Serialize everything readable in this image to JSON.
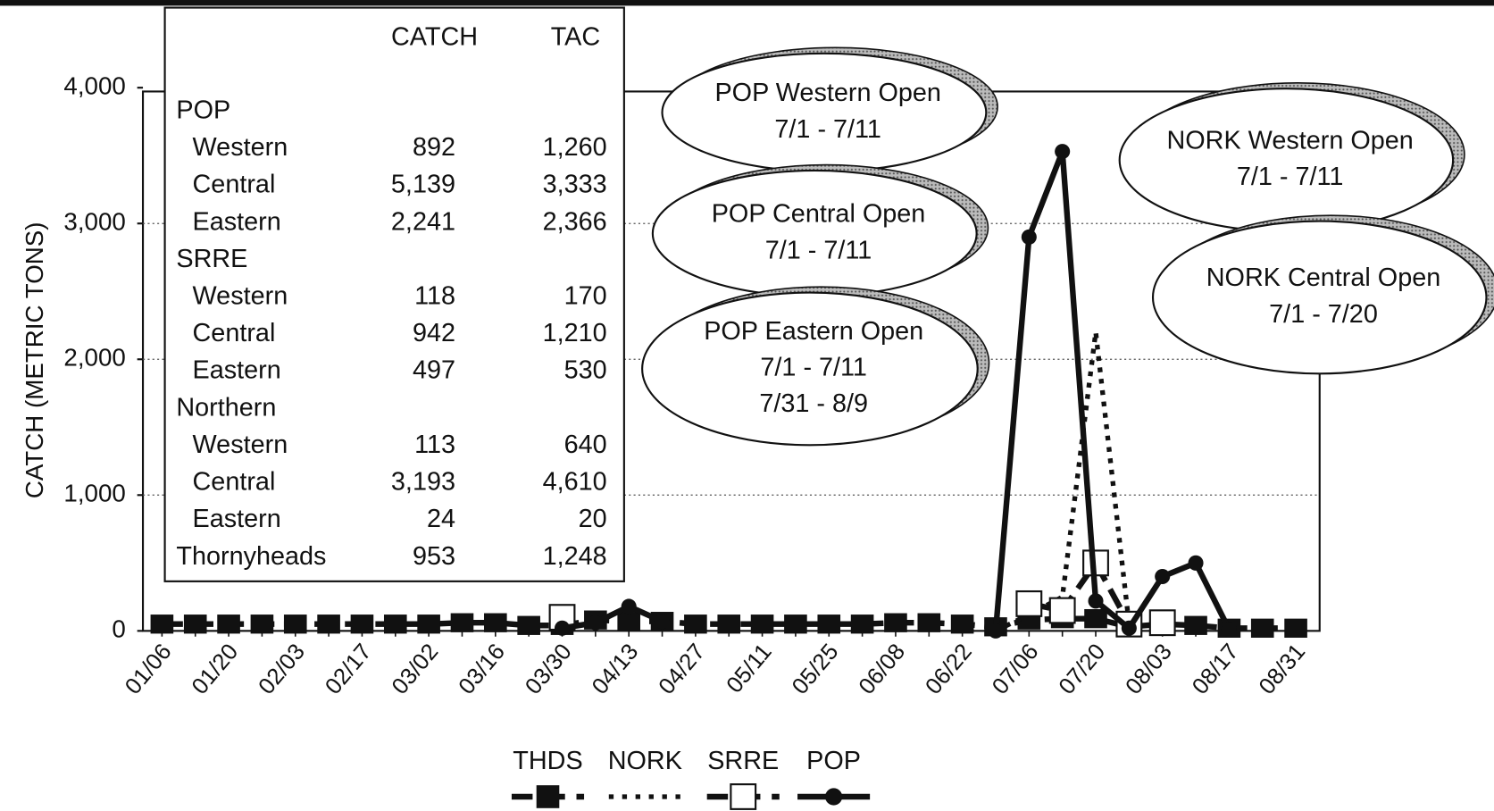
{
  "chart_data": {
    "type": "line",
    "y_label": "CATCH (METRIC TONS)",
    "categories": [
      "01/06",
      null,
      "01/20",
      null,
      "02/03",
      null,
      "02/17",
      null,
      "03/02",
      null,
      "03/16",
      null,
      "03/30",
      null,
      "04/13",
      null,
      "04/27",
      null,
      "05/11",
      null,
      "05/25",
      null,
      "06/08",
      null,
      "06/22",
      null,
      "07/06",
      null,
      "07/20",
      null,
      "08/03",
      null,
      "08/17",
      null,
      "08/31"
    ],
    "ylim": [
      0,
      4000
    ],
    "yticks": [
      0,
      {
        "value": 1000,
        "label": "1,000"
      },
      {
        "value": 2000,
        "label": "2,000"
      },
      {
        "value": 3000,
        "label": "3,000"
      },
      {
        "value": 4000,
        "label": "4,000"
      }
    ],
    "grid": true,
    "series": [
      {
        "name": "THDS",
        "color": "#111111",
        "line_style": "dashed",
        "marker": "square",
        "values": [
          50,
          50,
          50,
          50,
          50,
          50,
          50,
          50,
          50,
          60,
          60,
          40,
          40,
          80,
          70,
          70,
          50,
          50,
          50,
          50,
          50,
          50,
          60,
          60,
          50,
          30,
          80,
          90,
          90,
          30,
          50,
          40,
          20,
          20,
          20
        ]
      },
      {
        "name": "NORK",
        "color": "#111111",
        "line_style": "dotted",
        "marker": "none",
        "values": [
          null,
          null,
          null,
          null,
          null,
          null,
          null,
          null,
          null,
          null,
          null,
          null,
          null,
          null,
          null,
          null,
          null,
          null,
          null,
          null,
          null,
          null,
          null,
          null,
          null,
          0,
          120,
          250,
          2200,
          50,
          null,
          null,
          null,
          null,
          null
        ]
      },
      {
        "name": "SRRE",
        "color": "#111111",
        "line_style": "dashed",
        "marker": "open-square",
        "values": [
          null,
          null,
          null,
          null,
          null,
          null,
          null,
          null,
          null,
          null,
          null,
          null,
          100,
          null,
          null,
          null,
          null,
          null,
          null,
          null,
          null,
          null,
          null,
          null,
          null,
          null,
          200,
          150,
          500,
          50,
          60,
          null,
          null,
          null,
          null
        ]
      },
      {
        "name": "POP",
        "color": "#111111",
        "line_style": "solid",
        "marker": "circle",
        "values": [
          null,
          null,
          null,
          null,
          null,
          null,
          null,
          null,
          null,
          null,
          null,
          null,
          20,
          60,
          180,
          70,
          null,
          null,
          null,
          null,
          null,
          null,
          null,
          null,
          null,
          0,
          2900,
          3530,
          220,
          20,
          400,
          500,
          10,
          null,
          null
        ]
      }
    ],
    "annotations": [
      {
        "lines": [
          "POP Western Open",
          "7/1 - 7/11"
        ]
      },
      {
        "lines": [
          "POP Central Open",
          "7/1 - 7/11"
        ]
      },
      {
        "lines": [
          "POP Eastern Open",
          "7/1 - 7/11",
          "7/31 - 8/9"
        ]
      },
      {
        "lines": [
          "NORK Western Open",
          "7/1 - 7/11"
        ]
      },
      {
        "lines": [
          "NORK Central Open",
          "7/1 - 7/20"
        ]
      }
    ],
    "table": {
      "columns": [
        "CATCH",
        "TAC"
      ],
      "groups": [
        {
          "name": "POP",
          "rows": [
            {
              "label": "Western",
              "catch": "892",
              "tac": "1,260"
            },
            {
              "label": "Central",
              "catch": "5,139",
              "tac": "3,333"
            },
            {
              "label": "Eastern",
              "catch": "2,241",
              "tac": "2,366"
            }
          ]
        },
        {
          "name": "SRRE",
          "rows": [
            {
              "label": "Western",
              "catch": "118",
              "tac": "170"
            },
            {
              "label": "Central",
              "catch": "942",
              "tac": "1,210"
            },
            {
              "label": "Eastern",
              "catch": "497",
              "tac": "530"
            }
          ]
        },
        {
          "name": "Northern",
          "rows": [
            {
              "label": "Western",
              "catch": "113",
              "tac": "640"
            },
            {
              "label": "Central",
              "catch": "3,193",
              "tac": "4,610"
            },
            {
              "label": "Eastern",
              "catch": "24",
              "tac": "20"
            }
          ]
        },
        {
          "name": "Thornyheads",
          "catch": "953",
          "tac": "1,248"
        }
      ]
    }
  }
}
